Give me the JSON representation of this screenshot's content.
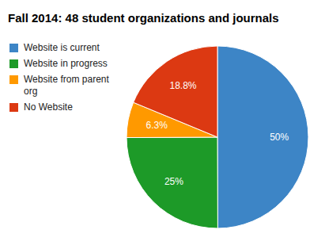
{
  "chart_data": {
    "type": "pie",
    "title": "Fall 2014: 48 student organizations and journals",
    "categories": [
      "Website is current",
      "Website in progress",
      "Website from parent org",
      "No Website"
    ],
    "values": [
      50,
      25,
      6.3,
      18.8
    ],
    "value_labels": [
      "50%",
      "25%",
      "6.3%",
      "18.8%"
    ],
    "colors": [
      "#3d85c6",
      "#1d9a28",
      "#ff9900",
      "#dc3912"
    ],
    "data_labels": true,
    "legend": "left"
  }
}
